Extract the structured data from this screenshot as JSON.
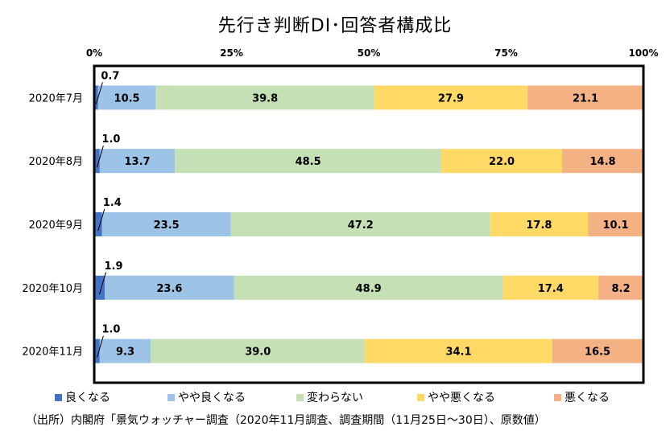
{
  "title": "先行き判断DI･回答者構成比",
  "source": "（出所）内閣府「景気ウォッチャー調査（2020年11月調査、調査期間（11月25日～30日）、原数値）",
  "chart_data": {
    "type": "bar",
    "orientation": "horizontal",
    "stacked": true,
    "title": "先行き判断DI･回答者構成比",
    "xlim": [
      0,
      100
    ],
    "x_ticks": [
      "0%",
      "25%",
      "50%",
      "75%",
      "100%"
    ],
    "categories": [
      "2020年7月",
      "2020年8月",
      "2020年9月",
      "2020年10月",
      "2020年11月"
    ],
    "series": [
      {
        "name": "良くなる",
        "color": "#4472c4",
        "values": [
          0.7,
          1.0,
          1.4,
          1.9,
          1.0
        ],
        "labels": [
          "0.7",
          "1.0",
          "1.4",
          "1.9",
          "1.0"
        ]
      },
      {
        "name": "やや良くなる",
        "color": "#9dc3e6",
        "values": [
          10.5,
          13.7,
          23.5,
          23.6,
          9.3
        ],
        "labels": [
          "10.5",
          "13.7",
          "23.5",
          "23.6",
          "9.3"
        ]
      },
      {
        "name": "変わらない",
        "color": "#c5e0b4",
        "values": [
          39.8,
          48.5,
          47.2,
          48.9,
          39.0
        ],
        "labels": [
          "39.8",
          "48.5",
          "47.2",
          "48.9",
          "39.0"
        ]
      },
      {
        "name": "やや悪くなる",
        "color": "#ffd966",
        "values": [
          27.9,
          22.0,
          17.8,
          17.4,
          34.1
        ],
        "labels": [
          "27.9",
          "22.0",
          "17.8",
          "17.4",
          "34.1"
        ]
      },
      {
        "name": "悪くなる",
        "color": "#f4b183",
        "values": [
          21.1,
          14.8,
          10.1,
          8.2,
          16.5
        ],
        "labels": [
          "21.1",
          "14.8",
          "10.1",
          "8.2",
          "16.5"
        ]
      }
    ],
    "legend_position": "bottom",
    "grid": false
  }
}
